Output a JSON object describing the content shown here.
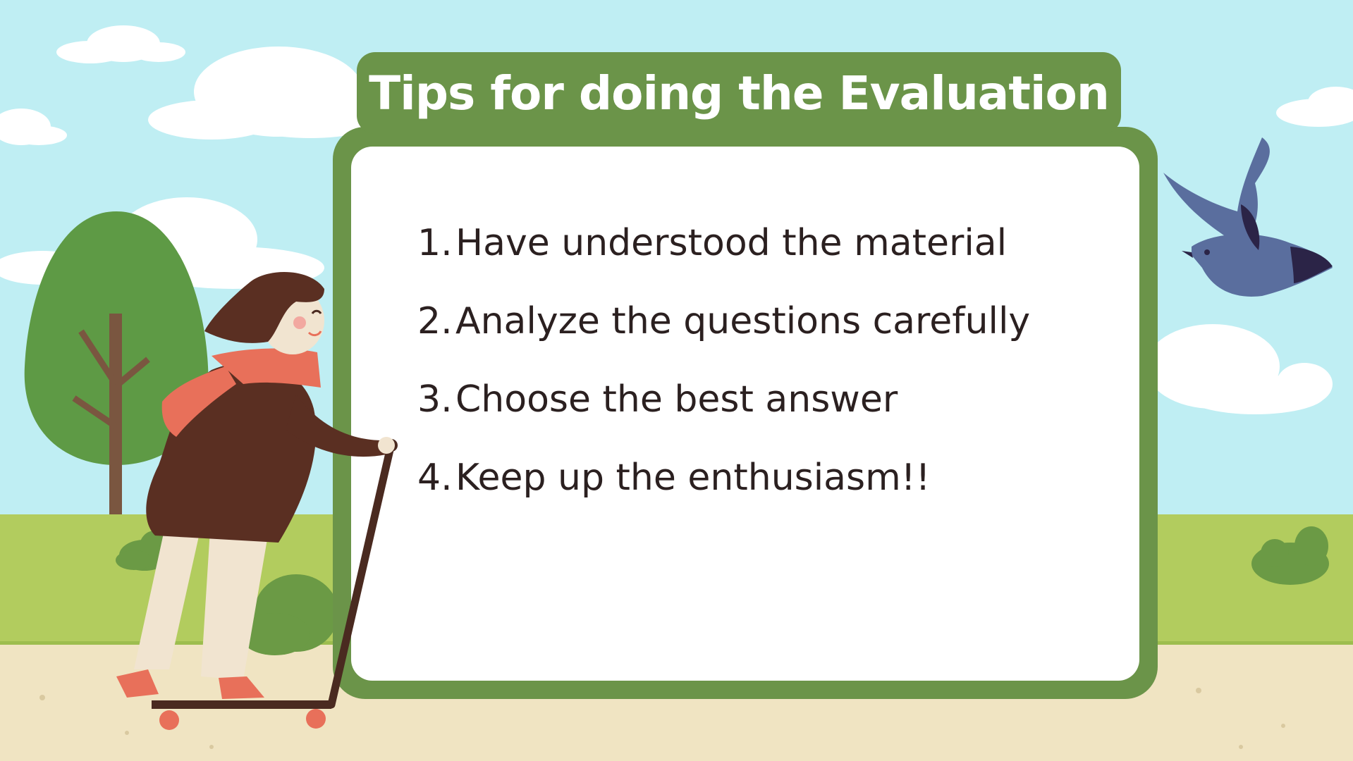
{
  "slide": {
    "title": "Tips for doing the Evaluation",
    "tips": [
      {
        "number": "1.",
        "text": "Have understood the material"
      },
      {
        "number": "2.",
        "text": "Analyze the questions carefully"
      },
      {
        "number": "3.",
        "text": "Choose the best answer"
      },
      {
        "number": "4.",
        "text": "Keep up the enthusiasm!!"
      }
    ]
  },
  "colors": {
    "sky": "#bfeef3",
    "grass": "#b2cc5e",
    "path": "#f0e4c2",
    "frame_green": "#6b9449",
    "tree_green": "#5e9a45",
    "bird_blue": "#5a6e9e",
    "text_dark": "#2b2020"
  },
  "icons": [
    "cloud-icon",
    "tree-icon",
    "bush-icon",
    "bird-icon",
    "girl-on-scooter-illustration"
  ]
}
